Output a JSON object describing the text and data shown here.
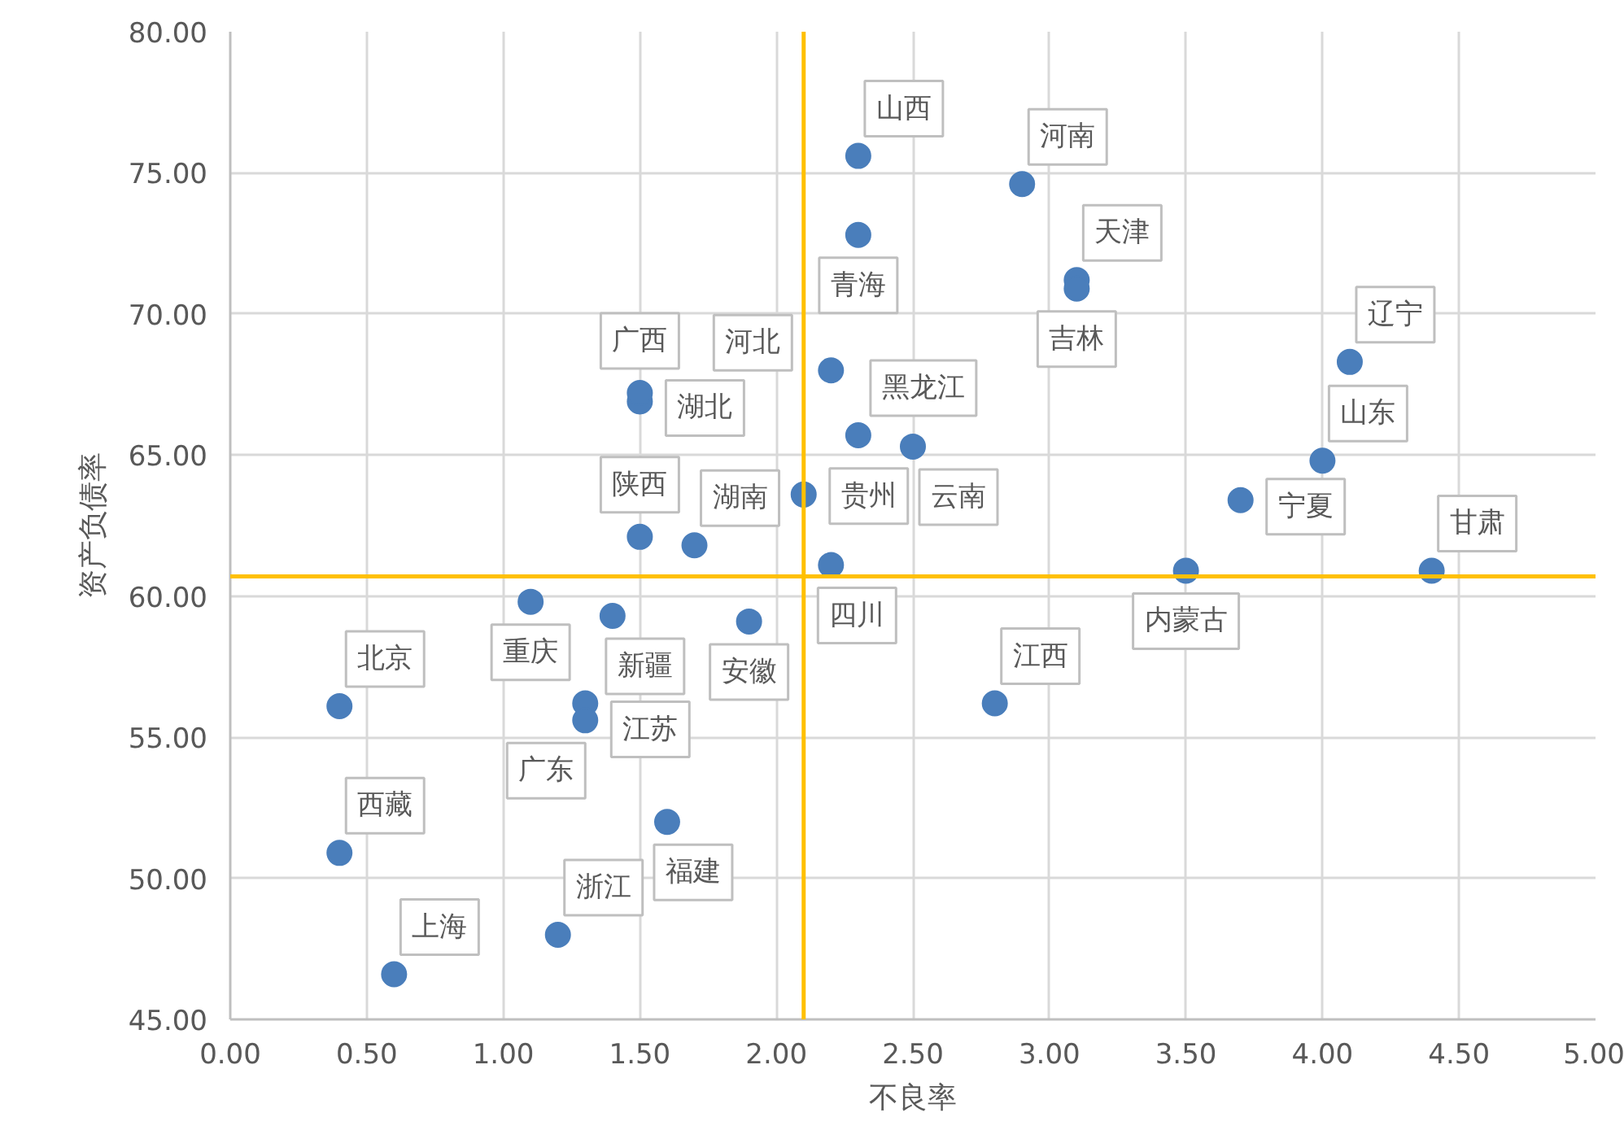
{
  "chart_data": {
    "type": "scatter",
    "xlabel": "不良率",
    "ylabel": "资产负债率",
    "series": [
      {
        "color": "#4a7ebb",
        "x": [
          2.3,
          2.9,
          3.1,
          2.3,
          3.1,
          2.2,
          1.5,
          2.3,
          4.1,
          1.5,
          2.5,
          3.5,
          4.0,
          1.5,
          2.1,
          3.7,
          4.4,
          2.2,
          1.7,
          1.1,
          1.4,
          1.9,
          0.4,
          1.3,
          2.8,
          1.3,
          1.6,
          0.4,
          1.2,
          0.6
        ],
        "values": [
          75.6,
          74.6,
          71.2,
          72.8,
          70.9,
          68.0,
          66.9,
          65.7,
          68.3,
          67.2,
          65.3,
          60.9,
          64.8,
          62.1,
          63.6,
          63.4,
          60.9,
          61.1,
          61.8,
          59.8,
          59.3,
          59.1,
          56.1,
          56.2,
          56.2,
          55.6,
          52.0,
          50.9,
          48.0,
          46.6
        ],
        "value_labels": [
          "山西",
          "河南",
          "天津",
          "青海",
          "吉林",
          "河北",
          "湖北",
          "黑龙江",
          "辽宁",
          "广西",
          "云南",
          "内蒙古",
          "山东",
          "陕西",
          "贵州",
          "宁夏",
          "甘肃",
          "四川",
          "湖南",
          "重庆",
          "新疆",
          "安徽",
          "北京",
          "江苏",
          "江西",
          "广东",
          "福建",
          "西藏",
          "浙江",
          "上海"
        ]
      }
    ],
    "xlim": [
      0,
      5
    ],
    "ylim": [
      45,
      80
    ],
    "xticks": [
      {
        "value": 0,
        "label": "0.00"
      },
      {
        "value": 0.5,
        "label": "0.50"
      },
      {
        "value": 1,
        "label": "1.00"
      },
      {
        "value": 1.5,
        "label": "1.50"
      },
      {
        "value": 2,
        "label": "2.00"
      },
      {
        "value": 2.5,
        "label": "2.50"
      },
      {
        "value": 3,
        "label": "3.00"
      },
      {
        "value": 3.5,
        "label": "3.50"
      },
      {
        "value": 4,
        "label": "4.00"
      },
      {
        "value": 4.5,
        "label": "4.50"
      },
      {
        "value": 5,
        "label": "5.00"
      }
    ],
    "yticks": [
      {
        "value": 45,
        "label": "45.00"
      },
      {
        "value": 50,
        "label": "50.00"
      },
      {
        "value": 55,
        "label": "55.00"
      },
      {
        "value": 60,
        "label": "60.00"
      },
      {
        "value": 65,
        "label": "65.00"
      },
      {
        "value": 70,
        "label": "70.00"
      },
      {
        "value": 75,
        "label": "75.00"
      },
      {
        "value": 80,
        "label": "80.00"
      }
    ],
    "grid": true,
    "marker": "circle",
    "ref_lines": [
      {
        "axis": "x",
        "value": 2.1,
        "color": "#ffc000"
      },
      {
        "axis": "y",
        "value": 60.7,
        "color": "#ffc000"
      }
    ]
  }
}
